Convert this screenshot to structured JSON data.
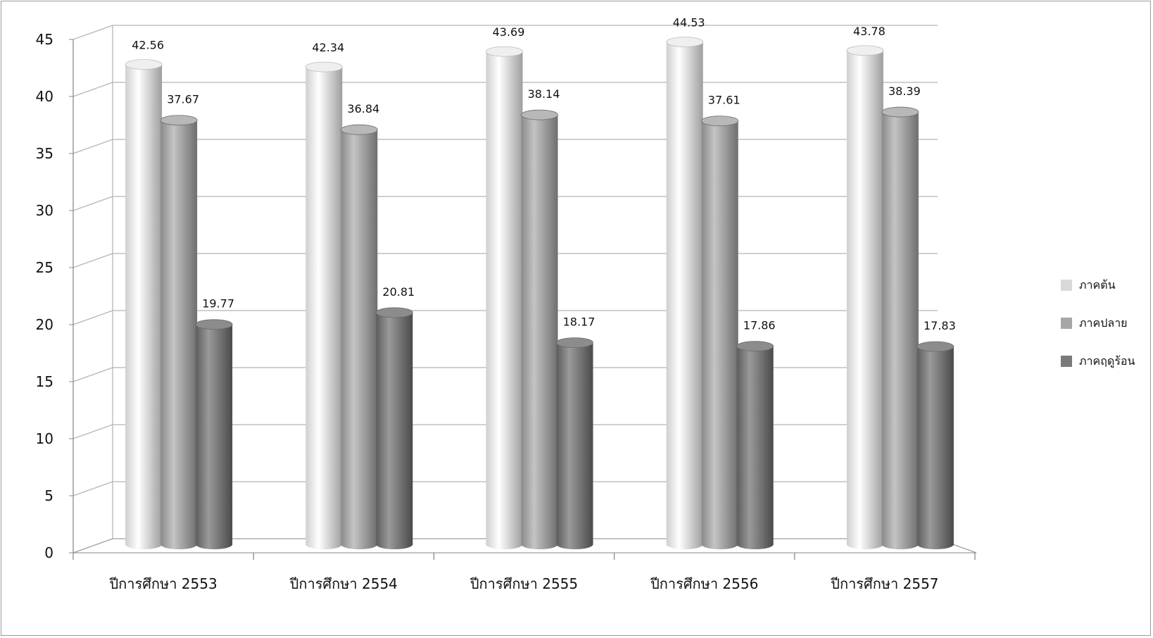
{
  "chart_data": {
    "type": "bar",
    "categories": [
      "ปีการศึกษา 2553",
      "ปีการศึกษา 2554",
      "ปีการศึกษา 2555",
      "ปีการศึกษา 2556",
      "ปีการศึกษา 2557"
    ],
    "series": [
      {
        "name": "ภาคต้น",
        "values": [
          42.56,
          42.34,
          43.69,
          44.53,
          43.78
        ],
        "color": "#d9d9d9"
      },
      {
        "name": "ภาคปลาย",
        "values": [
          37.67,
          36.84,
          38.14,
          37.61,
          38.39
        ],
        "color": "#a6a6a6"
      },
      {
        "name": "ภาคฤดูร้อน",
        "values": [
          19.77,
          20.81,
          18.17,
          17.86,
          17.83
        ],
        "color": "#7a7a7a"
      }
    ],
    "data_labels": [
      [
        "42.56",
        "37.67",
        "19.77"
      ],
      [
        "42.34",
        "36.84",
        "20.81"
      ],
      [
        "43.69",
        "38.14",
        "18.17"
      ],
      [
        "44.53",
        "37.61",
        "17.86"
      ],
      [
        "43.78",
        "38.39",
        "17.83"
      ]
    ],
    "y_ticks": [
      "0",
      "5",
      "10",
      "15",
      "20",
      "25",
      "30",
      "35",
      "40",
      "45"
    ],
    "ylim": [
      0,
      45
    ],
    "grid": true,
    "legend_position": "right",
    "title": "",
    "xlabel": "",
    "ylabel": ""
  }
}
